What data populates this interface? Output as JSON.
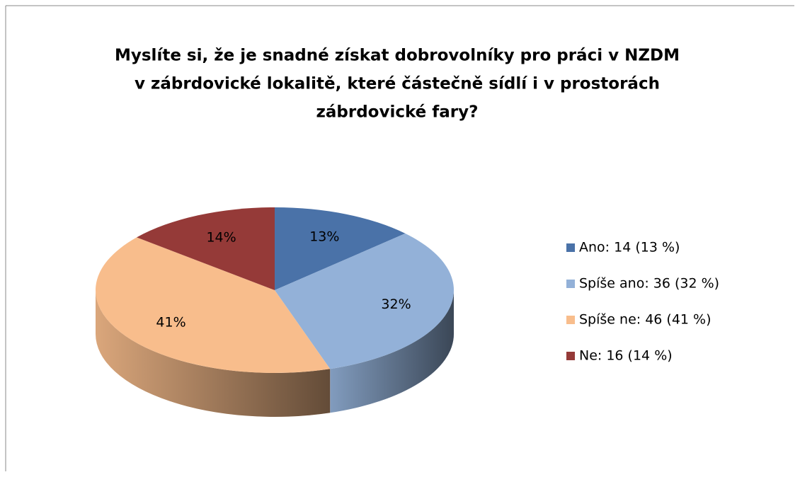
{
  "chart_data": {
    "type": "pie",
    "title": [
      "Myslíte si, že je snadné získat dobrovolníky pro práci v NZDM",
      "v zábrdovické lokalitě, které částečně sídlí i v prostorách",
      "zábrdovické fary?"
    ],
    "categories": [
      "Ano: 14 (13 %)",
      "Spíše ano: 36 (32 %)",
      "Spíše ne: 46 (41 %)",
      "Ne: 16 (14 %)"
    ],
    "values": [
      13,
      32,
      41,
      14
    ],
    "value_labels": [
      "13%",
      "32%",
      "41%",
      "14%"
    ],
    "colors": [
      "#4a72a8",
      "#93b1d8",
      "#f8bd8c",
      "#953a38"
    ],
    "legend": "right"
  }
}
